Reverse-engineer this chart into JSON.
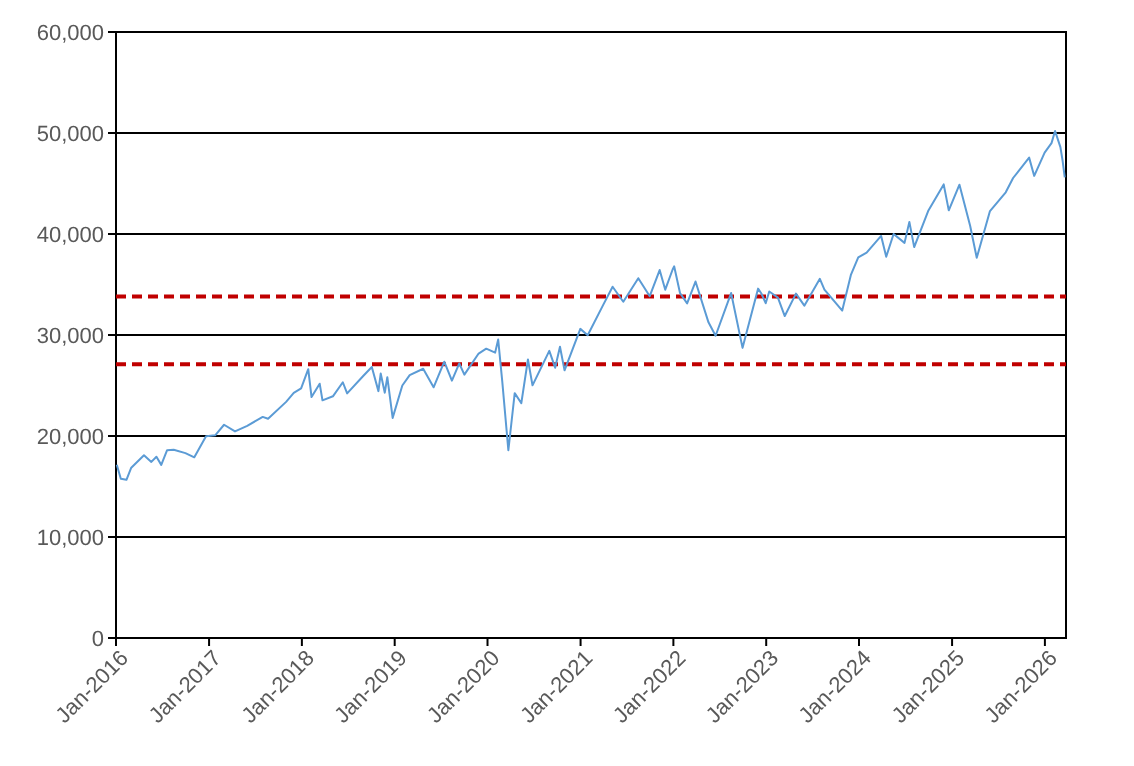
{
  "chart_data": {
    "type": "line",
    "x": [
      "2016-01-04",
      "2016-01-20",
      "2016-02-11",
      "2016-03-01",
      "2016-04-20",
      "2016-05-19",
      "2016-06-08",
      "2016-06-27",
      "2016-07-20",
      "2016-08-15",
      "2016-09-30",
      "2016-11-04",
      "2016-12-20",
      "2017-01-25",
      "2017-03-01",
      "2017-04-13",
      "2017-05-31",
      "2017-07-31",
      "2017-08-21",
      "2017-10-31",
      "2017-11-30",
      "2017-12-29",
      "2018-01-26",
      "2018-02-08",
      "2018-03-12",
      "2018-03-23",
      "2018-05-03",
      "2018-06-11",
      "2018-06-28",
      "2018-08-31",
      "2018-10-03",
      "2018-10-29",
      "2018-11-07",
      "2018-11-23",
      "2018-12-03",
      "2018-12-24",
      "2019-01-31",
      "2019-03-01",
      "2019-04-23",
      "2019-06-03",
      "2019-07-15",
      "2019-08-14",
      "2019-09-12",
      "2019-10-02",
      "2019-11-27",
      "2019-12-27",
      "2020-01-31",
      "2020-02-12",
      "2020-02-28",
      "2020-03-23",
      "2020-04-17",
      "2020-05-13",
      "2020-06-08",
      "2020-06-26",
      "2020-08-31",
      "2020-09-23",
      "2020-10-12",
      "2020-10-30",
      "2020-12-31",
      "2021-01-29",
      "2021-03-31",
      "2021-05-07",
      "2021-06-18",
      "2021-08-16",
      "2021-09-30",
      "2021-11-08",
      "2021-11-30",
      "2021-12-29",
      "2022-01-04",
      "2022-01-27",
      "2022-02-24",
      "2022-03-29",
      "2022-05-19",
      "2022-06-16",
      "2022-08-16",
      "2022-09-30",
      "2022-11-30",
      "2022-12-13",
      "2022-12-30",
      "2023-01-13",
      "2023-02-16",
      "2023-03-15",
      "2023-04-28",
      "2023-05-31",
      "2023-07-31",
      "2023-08-18",
      "2023-10-27",
      "2023-11-30",
      "2023-12-29",
      "2024-01-31",
      "2024-03-28",
      "2024-04-17",
      "2024-05-16",
      "2024-06-28",
      "2024-07-17",
      "2024-08-05",
      "2024-09-30",
      "2024-11-29",
      "2024-12-19",
      "2025-01-30",
      "2025-03-13",
      "2025-04-08",
      "2025-05-30",
      "2025-07-31",
      "2025-08-29",
      "2025-10-31",
      "2025-11-20",
      "2025-12-31",
      "2026-01-27",
      "2026-02-10",
      "2026-03-03",
      "2026-03-12",
      "2026-03-20"
    ],
    "series": [
      {
        "color": "#5b9bd5",
        "values": [
          17148,
          15766,
          15660,
          16865,
          18096,
          17435,
          17938,
          17140,
          18595,
          18636,
          18308,
          17888,
          19974,
          20068,
          21115,
          20453,
          21009,
          21891,
          21703,
          23377,
          24272,
          24719,
          26617,
          23860,
          25178,
          23533,
          23930,
          25322,
          24216,
          25965,
          26828,
          24442,
          26180,
          24286,
          25826,
          21792,
          24999,
          26026,
          26656,
          24820,
          27359,
          25479,
          27182,
          26078,
          28164,
          28645,
          28256,
          29551,
          25409,
          18592,
          24242,
          23247,
          27572,
          25016,
          28430,
          26763,
          28838,
          26502,
          30606,
          29983,
          32982,
          34778,
          33290,
          35625,
          33844,
          36432,
          34484,
          36488,
          36799,
          34160,
          33131,
          35294,
          31253,
          29927,
          34152,
          28726,
          34590,
          34108,
          33147,
          34303,
          33696,
          31875,
          34098,
          32908,
          35560,
          34500,
          32418,
          35950,
          37690,
          38150,
          39807,
          37753,
          40003,
          39119,
          41198,
          38703,
          42330,
          44910,
          42342,
          44882,
          40813,
          37645,
          42270,
          44131,
          45545,
          47563,
          45752,
          48063,
          49000,
          50200,
          48600,
          47200,
          45600
        ]
      }
    ],
    "xlim": [
      "2016-01-01",
      "2026-03-25"
    ],
    "xticks": [
      {
        "value": "2016-01-01",
        "label": "Jan-2016"
      },
      {
        "value": "2017-01-01",
        "label": "Jan-2017"
      },
      {
        "value": "2018-01-01",
        "label": "Jan-2018"
      },
      {
        "value": "2019-01-01",
        "label": "Jan-2019"
      },
      {
        "value": "2020-01-01",
        "label": "Jan-2020"
      },
      {
        "value": "2021-01-01",
        "label": "Jan-2021"
      },
      {
        "value": "2022-01-01",
        "label": "Jan-2022"
      },
      {
        "value": "2023-01-01",
        "label": "Jan-2023"
      },
      {
        "value": "2024-01-01",
        "label": "Jan-2024"
      },
      {
        "value": "2025-01-01",
        "label": "Jan-2025"
      },
      {
        "value": "2026-01-01",
        "label": "Jan-2026"
      }
    ],
    "ylim": [
      0,
      60000
    ],
    "yticks": [
      0,
      {
        "value": 10000,
        "label": "10,000"
      },
      {
        "value": 20000,
        "label": "20,000"
      },
      {
        "value": 30000,
        "label": "30,000"
      },
      {
        "value": 40000,
        "label": "40,000"
      },
      {
        "value": 50000,
        "label": "50,000"
      },
      {
        "value": 60000,
        "label": "60,000"
      }
    ],
    "grid": "y",
    "ref_lines": [
      {
        "axis": "y",
        "value": 33800,
        "color": "#c00000",
        "line_style": "dashed"
      },
      {
        "axis": "y",
        "value": 27100,
        "color": "#c00000",
        "line_style": "dashed"
      }
    ]
  }
}
